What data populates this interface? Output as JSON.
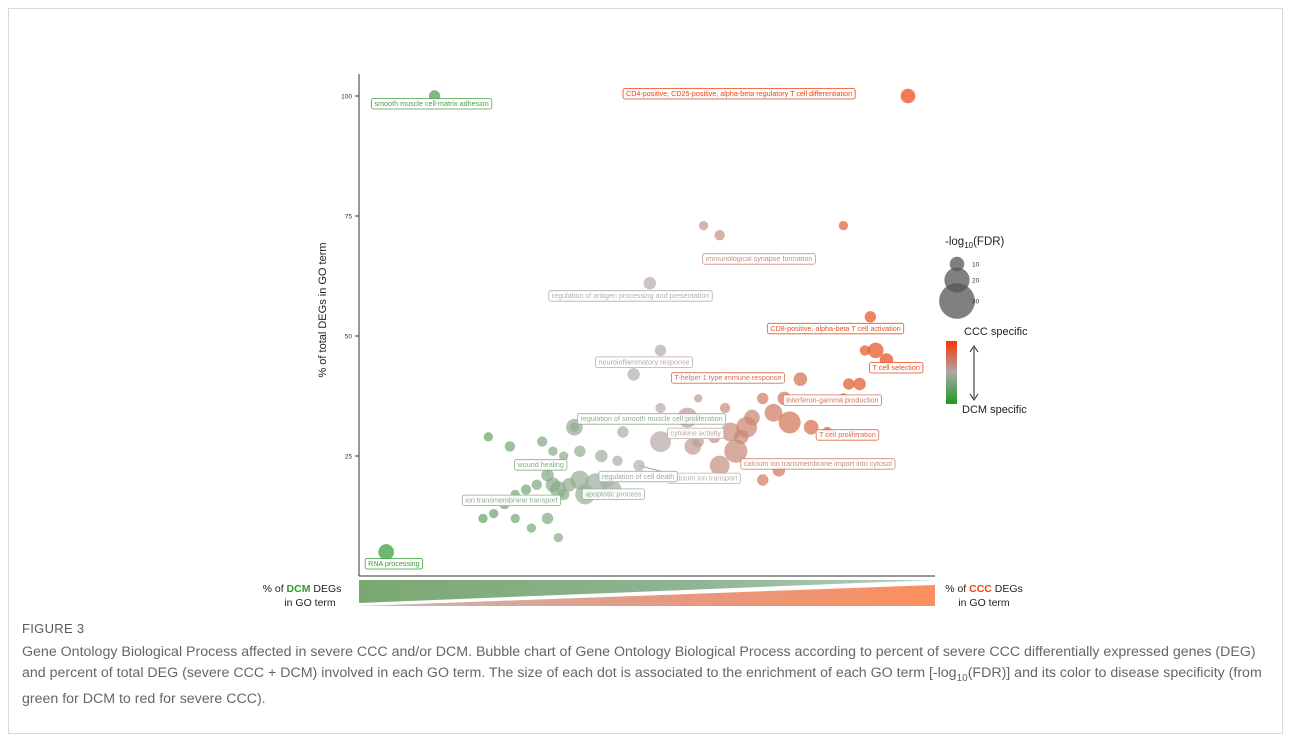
{
  "chart_data": {
    "type": "scatter",
    "title": "",
    "ylabel": "% of total DEGs in GO term",
    "xlabel_left": {
      "prefix": "% of ",
      "highlight": "DCM",
      "suffix": " DEGs",
      "line2": "in GO term"
    },
    "xlabel_right": {
      "prefix": "% of ",
      "highlight": "CCC",
      "suffix": " DEGs",
      "line2": "in GO term"
    },
    "xlim": [
      0,
      100
    ],
    "ylim": [
      0,
      105
    ],
    "yticks": [
      "25",
      "50",
      "75",
      "100"
    ],
    "grid": false,
    "size_legend": {
      "title_prefix": "-log",
      "title_sub": "10",
      "title_suffix": "(FDR)",
      "entries": [
        "10",
        "20",
        "30"
      ]
    },
    "color_legend": {
      "top": "CCC specific",
      "bottom": "DCM specific"
    },
    "colors": {
      "ccc": "#ee4411",
      "dcm": "#2f9a2f",
      "neutral": "#b3b3b3"
    },
    "points": [
      {
        "x": 12,
        "y": 100,
        "size": 7,
        "label": "smooth muscle cell-matrix adhesion"
      },
      {
        "x": 100,
        "y": 100,
        "size": 10,
        "label": "CD4-positive, CD25-positive, alpha-beta regulatory T cell differentiation"
      },
      {
        "x": 65,
        "y": 71,
        "size": 6,
        "label": "immunological synapse formation"
      },
      {
        "x": 88,
        "y": 73,
        "size": 5
      },
      {
        "x": 62,
        "y": 73,
        "size": 5
      },
      {
        "x": 52,
        "y": 61,
        "size": 8,
        "label": "regulation of antigen processing and presentation"
      },
      {
        "x": 93,
        "y": 54,
        "size": 7,
        "label": "CD8-positive, alpha-beta T cell activation"
      },
      {
        "x": 94,
        "y": 47,
        "size": 11
      },
      {
        "x": 92,
        "y": 47,
        "size": 6
      },
      {
        "x": 96,
        "y": 45,
        "size": 9,
        "label": "T cell selection"
      },
      {
        "x": 54,
        "y": 47,
        "size": 7,
        "label": "neuroinflammatory response"
      },
      {
        "x": 49,
        "y": 42,
        "size": 8
      },
      {
        "x": 80,
        "y": 41,
        "size": 9,
        "label": "T-helper 1 type immune response"
      },
      {
        "x": 89,
        "y": 40,
        "size": 7
      },
      {
        "x": 91,
        "y": 40,
        "size": 8
      },
      {
        "x": 61,
        "y": 37,
        "size": 4
      },
      {
        "x": 73,
        "y": 37,
        "size": 7
      },
      {
        "x": 77,
        "y": 37,
        "size": 9,
        "label": "interferon-gamma production"
      },
      {
        "x": 88,
        "y": 37,
        "size": 6
      },
      {
        "x": 66,
        "y": 35,
        "size": 6
      },
      {
        "x": 54,
        "y": 35,
        "size": 6
      },
      {
        "x": 59,
        "y": 33,
        "size": 15
      },
      {
        "x": 71,
        "y": 33,
        "size": 11
      },
      {
        "x": 75,
        "y": 34,
        "size": 13
      },
      {
        "x": 78,
        "y": 32,
        "size": 17
      },
      {
        "x": 82,
        "y": 31,
        "size": 10,
        "label": "T cell proliferation"
      },
      {
        "x": 85,
        "y": 30,
        "size": 6
      },
      {
        "x": 67,
        "y": 30,
        "size": 14
      },
      {
        "x": 61,
        "y": 28,
        "size": 7
      },
      {
        "x": 64,
        "y": 29,
        "size": 8
      },
      {
        "x": 69,
        "y": 29,
        "size": 10
      },
      {
        "x": 70,
        "y": 31,
        "size": 16
      },
      {
        "x": 54,
        "y": 28,
        "size": 16,
        "label": "cytokine activity"
      },
      {
        "x": 60,
        "y": 27,
        "size": 12
      },
      {
        "x": 68,
        "y": 26,
        "size": 18,
        "label": "calcium ion transmembrane import into cytosol"
      },
      {
        "x": 65,
        "y": 23,
        "size": 15
      },
      {
        "x": 76,
        "y": 22,
        "size": 8
      },
      {
        "x": 73,
        "y": 20,
        "size": 7
      },
      {
        "x": 47,
        "y": 30,
        "size": 7
      },
      {
        "x": 38,
        "y": 31,
        "size": 12,
        "label": "regulation of smooth muscle cell proliferation"
      },
      {
        "x": 38,
        "y": 31,
        "size": 5
      },
      {
        "x": 32,
        "y": 28,
        "size": 6
      },
      {
        "x": 26,
        "y": 27,
        "size": 6
      },
      {
        "x": 22,
        "y": 29,
        "size": 5
      },
      {
        "x": 34,
        "y": 26,
        "size": 5
      },
      {
        "x": 36,
        "y": 25,
        "size": 5
      },
      {
        "x": 39,
        "y": 26,
        "size": 7
      },
      {
        "x": 43,
        "y": 25,
        "size": 8
      },
      {
        "x": 46,
        "y": 24,
        "size": 6
      },
      {
        "x": 50,
        "y": 23,
        "size": 7,
        "label": "calcium ion transport"
      },
      {
        "x": 33,
        "y": 21,
        "size": 8,
        "label": "wound healing"
      },
      {
        "x": 35,
        "y": 18,
        "size": 12,
        "label": "ion transmembrane transport"
      },
      {
        "x": 37,
        "y": 19,
        "size": 9
      },
      {
        "x": 39,
        "y": 20,
        "size": 14
      },
      {
        "x": 40,
        "y": 17,
        "size": 15,
        "label": "apoptotic process"
      },
      {
        "x": 42,
        "y": 19,
        "size": 18,
        "label": "regulation of cell death"
      },
      {
        "x": 44,
        "y": 20,
        "size": 11
      },
      {
        "x": 45,
        "y": 18,
        "size": 14
      },
      {
        "x": 36,
        "y": 17,
        "size": 7
      },
      {
        "x": 34,
        "y": 19,
        "size": 10
      },
      {
        "x": 31,
        "y": 19,
        "size": 6
      },
      {
        "x": 29,
        "y": 18,
        "size": 6
      },
      {
        "x": 27,
        "y": 17,
        "size": 5
      },
      {
        "x": 25,
        "y": 15,
        "size": 6
      },
      {
        "x": 23,
        "y": 13,
        "size": 5
      },
      {
        "x": 21,
        "y": 12,
        "size": 5
      },
      {
        "x": 27,
        "y": 12,
        "size": 5
      },
      {
        "x": 33,
        "y": 12,
        "size": 7
      },
      {
        "x": 30,
        "y": 10,
        "size": 5
      },
      {
        "x": 35,
        "y": 8,
        "size": 5
      },
      {
        "x": 3,
        "y": 5,
        "size": 11,
        "label": "RNA processing"
      }
    ]
  },
  "figure": {
    "label": "FIGURE 3",
    "caption_main": "Gene Ontology Biological Process affected in severe CCC and/or DCM. Bubble chart of Gene Ontology Biological Process according to percent of severe CCC differentially expressed genes (DEG) and percent of total DEG (severe CCC + DCM) involved in each GO term. The size of each dot is associated to the enrichment of each GO term [-log",
    "caption_sub": "10",
    "caption_end": "(FDR)] and its color to disease specificity (from green for DCM to red for severe CCC)."
  }
}
